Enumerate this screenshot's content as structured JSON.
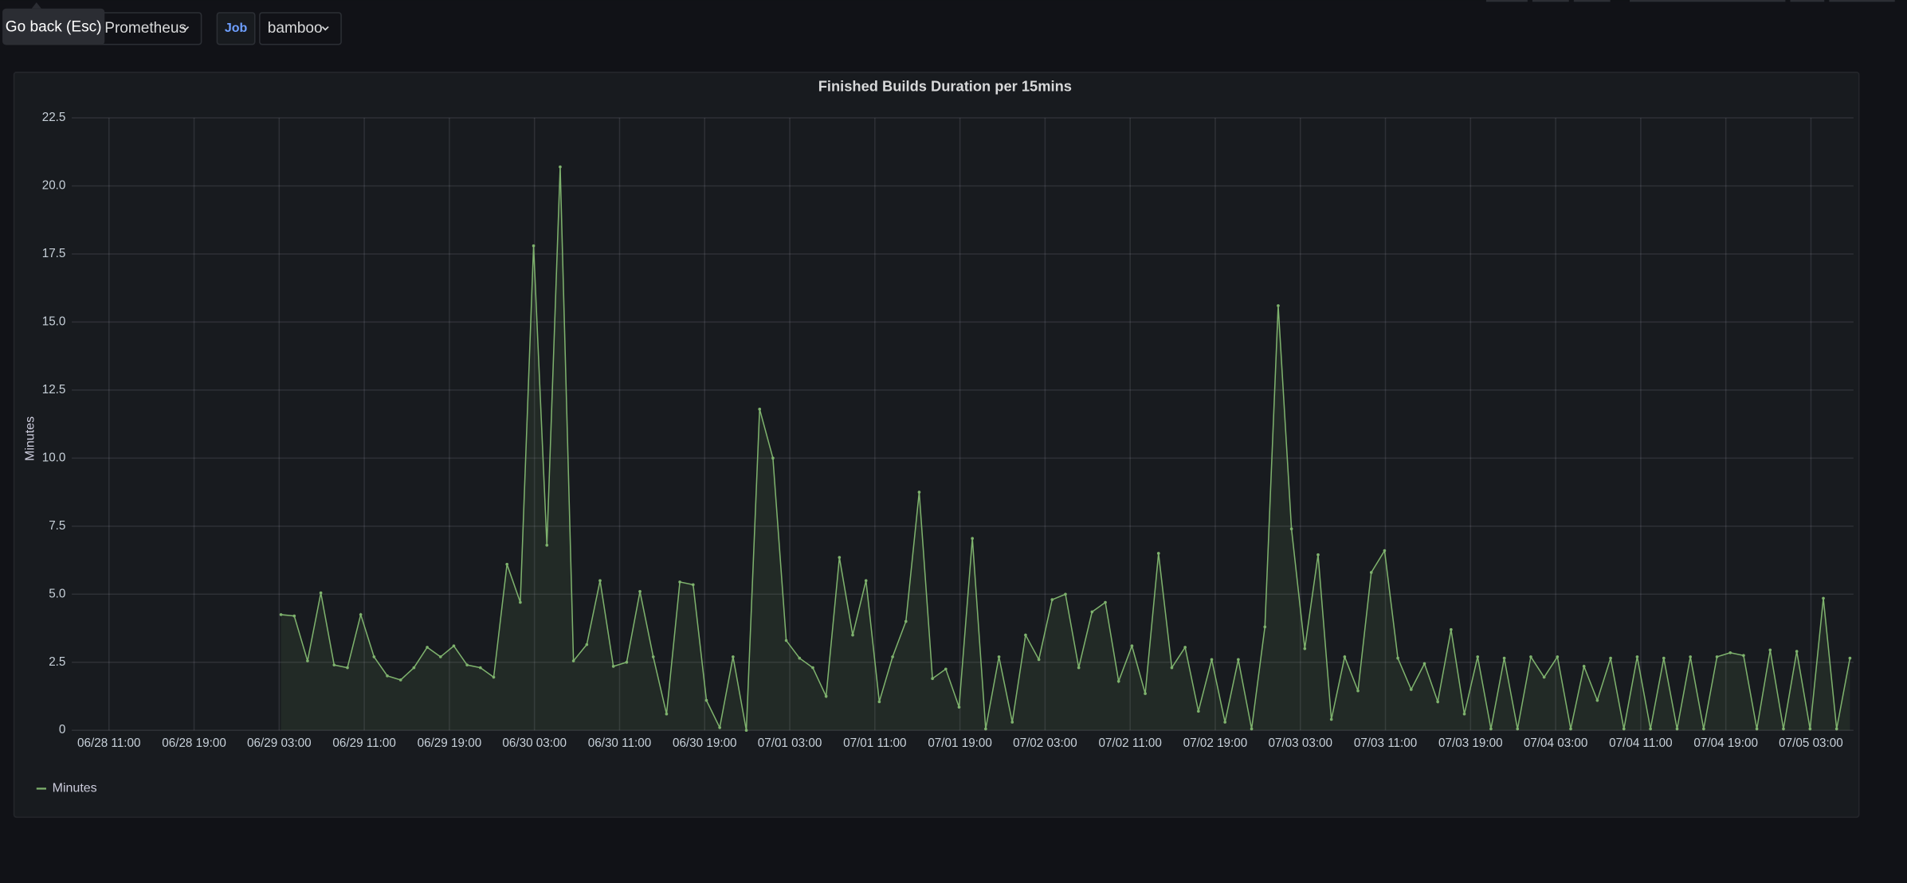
{
  "toolbar": {
    "tooltip": "Go back (Esc)",
    "datasource": "Prometheus",
    "variables": [
      {
        "label": "Job",
        "value": "bamboo"
      }
    ]
  },
  "chart_data": {
    "type": "line",
    "title": "Finished Builds Duration per 15mins",
    "y_label": "Minutes",
    "xlim": [
      "06/28 07:30",
      "07/05 07:00"
    ],
    "xticks": [
      "06/28 11:00",
      "06/28 19:00",
      "06/29 03:00",
      "06/29 11:00",
      "06/29 19:00",
      "06/30 03:00",
      "06/30 11:00",
      "06/30 19:00",
      "07/01 03:00",
      "07/01 11:00",
      "07/01 19:00",
      "07/02 03:00",
      "07/02 11:00",
      "07/02 19:00",
      "07/03 03:00",
      "07/03 11:00",
      "07/03 19:00",
      "07/04 03:00",
      "07/04 11:00",
      "07/04 19:00",
      "07/05 03:00"
    ],
    "ylim": [
      0,
      22.5
    ],
    "yticks": [
      0,
      2.5,
      {
        "value": 5,
        "label": "5.0"
      },
      7.5,
      {
        "value": 10,
        "label": "10.0"
      },
      12.5,
      {
        "value": 15,
        "label": "15.0"
      },
      17.5,
      {
        "value": 20,
        "label": "20.0"
      },
      22.5
    ],
    "grid": true,
    "legend": "bottom-left",
    "series": [
      {
        "name": "Minutes",
        "color": "#7eb26d",
        "x": [
          "06/29 03:10",
          "06/29 04:25",
          "06/29 05:40",
          "06/29 06:55",
          "06/29 08:10",
          "06/29 09:25",
          "06/29 10:40",
          "06/29 11:55",
          "06/29 13:10",
          "06/29 14:25",
          "06/29 15:40",
          "06/29 16:55",
          "06/29 18:10",
          "06/29 19:25",
          "06/29 20:40",
          "06/29 21:55",
          "06/29 23:10",
          "06/30 00:25",
          "06/30 01:40",
          "06/30 02:55",
          "06/30 04:10",
          "06/30 05:25",
          "06/30 06:40",
          "06/30 07:55",
          "06/30 09:10",
          "06/30 10:25",
          "06/30 11:40",
          "06/30 12:55",
          "06/30 14:10",
          "06/30 15:25",
          "06/30 16:40",
          "06/30 17:55",
          "06/30 19:10",
          "06/30 20:25",
          "06/30 21:40",
          "06/30 22:55",
          "07/01 00:10",
          "07/01 01:25",
          "07/01 02:40",
          "07/01 03:55",
          "07/01 05:10",
          "07/01 06:25",
          "07/01 07:40",
          "07/01 08:55",
          "07/01 10:10",
          "07/01 11:25",
          "07/01 12:40",
          "07/01 13:55",
          "07/01 15:10",
          "07/01 16:25",
          "07/01 17:40",
          "07/01 18:55",
          "07/01 20:10",
          "07/01 21:25",
          "07/01 22:40",
          "07/01 23:55",
          "07/02 01:10",
          "07/02 02:25",
          "07/02 03:40",
          "07/02 04:55",
          "07/02 06:10",
          "07/02 07:25",
          "07/02 08:40",
          "07/02 09:55",
          "07/02 11:10",
          "07/02 12:25",
          "07/02 13:40",
          "07/02 14:55",
          "07/02 16:10",
          "07/02 17:25",
          "07/02 18:40",
          "07/02 19:55",
          "07/02 21:10",
          "07/02 22:25",
          "07/02 23:40",
          "07/03 00:55",
          "07/03 02:10",
          "07/03 03:25",
          "07/03 04:40",
          "07/03 05:55",
          "07/03 07:10",
          "07/03 08:25",
          "07/03 09:40",
          "07/03 10:55",
          "07/03 12:10",
          "07/03 13:25",
          "07/03 14:40",
          "07/03 15:55",
          "07/03 17:10",
          "07/03 18:25",
          "07/03 19:40",
          "07/03 20:55",
          "07/03 22:10",
          "07/03 23:25",
          "07/04 00:40",
          "07/04 01:55",
          "07/04 03:10",
          "07/04 04:25",
          "07/04 05:40",
          "07/04 06:55",
          "07/04 08:10",
          "07/04 09:25",
          "07/04 10:40",
          "07/04 11:55",
          "07/04 13:10",
          "07/04 14:25",
          "07/04 15:40",
          "07/04 16:55",
          "07/04 18:10",
          "07/04 19:25",
          "07/04 20:40",
          "07/04 21:55",
          "07/04 23:10",
          "07/05 00:25",
          "07/05 01:40",
          "07/05 02:55",
          "07/05 04:10",
          "07/05 05:25",
          "07/05 06:40"
        ],
        "values": [
          4.25,
          4.2,
          2.55,
          5.05,
          2.4,
          2.3,
          4.25,
          2.7,
          2.0,
          1.85,
          2.3,
          3.05,
          2.7,
          3.1,
          2.4,
          2.3,
          1.95,
          6.1,
          4.7,
          17.8,
          6.8,
          20.7,
          2.55,
          3.15,
          5.5,
          2.35,
          2.5,
          5.1,
          2.7,
          0.6,
          5.45,
          5.35,
          1.1,
          0.1,
          2.7,
          0,
          11.8,
          10.0,
          3.3,
          2.65,
          2.3,
          1.25,
          6.35,
          3.5,
          5.5,
          1.05,
          2.7,
          4.0,
          8.75,
          1.9,
          2.25,
          0.85,
          7.05,
          0.05,
          2.7,
          0.3,
          3.5,
          2.6,
          4.8,
          5.0,
          2.3,
          4.35,
          4.7,
          1.8,
          3.1,
          1.35,
          6.5,
          2.3,
          3.05,
          0.7,
          2.6,
          0.3,
          2.6,
          0.05,
          3.8,
          15.6,
          7.4,
          3.0,
          6.45,
          0.4,
          2.7,
          1.45,
          5.8,
          6.6,
          2.65,
          1.5,
          2.45,
          1.05,
          3.7,
          0.6,
          2.7,
          0.05,
          2.65,
          0.05,
          2.7,
          1.95,
          2.7,
          0.05,
          2.35,
          1.1,
          2.65,
          0.05,
          2.7,
          0.05,
          2.65,
          0.05,
          2.7,
          0.05,
          2.7,
          2.85,
          2.75,
          0.05,
          2.95,
          0.05,
          2.9,
          0.05,
          4.85,
          0.05,
          2.65
        ]
      }
    ]
  }
}
